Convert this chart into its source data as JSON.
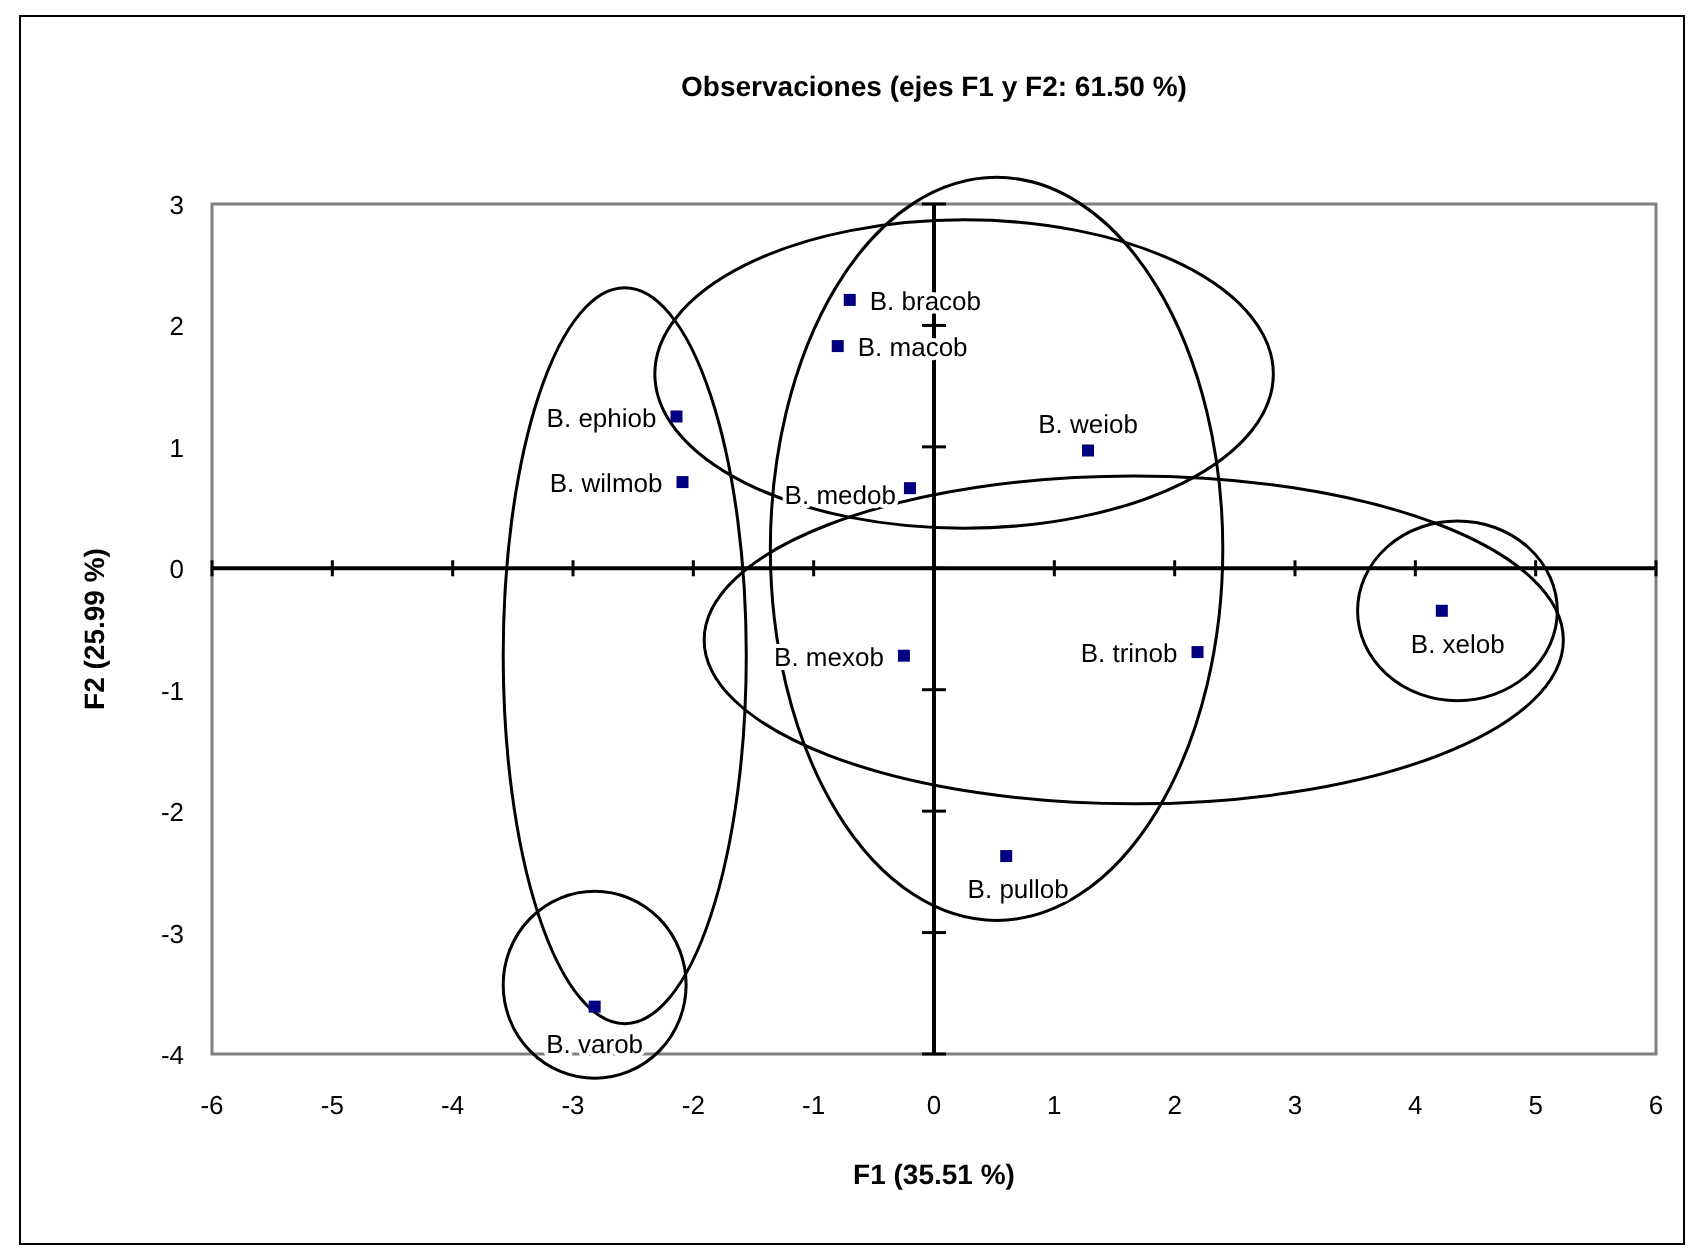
{
  "chart_data": {
    "type": "scatter",
    "title": "Observaciones (ejes F1 y F2: 61.50 %)",
    "xlabel": "F1 (35.51 %)",
    "ylabel": "F2 (25.99 %)",
    "xlim": [
      -6,
      6
    ],
    "ylim": [
      -4,
      3
    ],
    "xticks": [
      -6,
      -5,
      -4,
      -3,
      -2,
      -1,
      0,
      1,
      2,
      3,
      4,
      5,
      6
    ],
    "yticks": [
      -4,
      -3,
      -2,
      -1,
      0,
      1,
      2,
      3
    ],
    "marker": "square",
    "series": [
      {
        "color": "#000080",
        "x": [
          -0.7,
          -0.8,
          -2.14,
          -2.09,
          1.28,
          -0.2,
          -0.25,
          2.19,
          4.22,
          0.6,
          -2.82
        ],
        "values": [
          2.21,
          1.83,
          1.25,
          0.71,
          0.97,
          0.66,
          -0.72,
          -0.69,
          -0.35,
          -2.37,
          -3.61
        ]
      }
    ],
    "annotations": [
      {
        "text": "B. bracob",
        "x": -0.7,
        "y": 2.21
      },
      {
        "text": "B. macob",
        "x": -0.8,
        "y": 1.83
      },
      {
        "text": "B. ephiob",
        "x": -2.14,
        "y": 1.25
      },
      {
        "text": "B. wilmob",
        "x": -2.09,
        "y": 0.71
      },
      {
        "text": "B. weiob",
        "x": 1.28,
        "y": 0.97
      },
      {
        "text": "B. medob",
        "x": -0.2,
        "y": 0.66
      },
      {
        "text": "B. mexob",
        "x": -0.25,
        "y": -0.72
      },
      {
        "text": "B. trinob",
        "x": 2.19,
        "y": -0.69
      },
      {
        "text": "B. xelob",
        "x": 4.22,
        "y": -0.35
      },
      {
        "text": "B. pullob",
        "x": 0.6,
        "y": -2.37
      },
      {
        "text": "B. varob",
        "x": -2.82,
        "y": -3.61
      }
    ]
  }
}
